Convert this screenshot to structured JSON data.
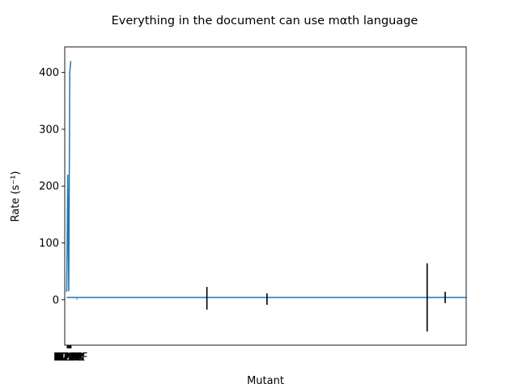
{
  "chart_data": {
    "type": "line",
    "title": "Everything in the document can use mαth language",
    "xlabel": "Mutant",
    "ylabel": "Rate (s⁻¹)",
    "ylim": [
      -80,
      445
    ],
    "grid": false,
    "legend": "none",
    "x_tick_labels": [
      "N28",
      "N28E",
      "N28P",
      "N28W",
      "N28R",
      "N28K",
      "K128F"
    ],
    "yticks": [
      0,
      100,
      200,
      300,
      400
    ],
    "series": [
      {
        "style": "line",
        "color": "#1f77b4",
        "points": [
          {
            "x": 0.0,
            "y": 14
          },
          {
            "x": 0.5,
            "y": 220
          },
          {
            "x": 1.0,
            "y": 15
          },
          {
            "x": 1.5,
            "y": 400
          },
          {
            "x": 2.0,
            "y": 420
          }
        ]
      },
      {
        "style": "line",
        "color": "#1f77b4",
        "points": [
          {
            "x": 0.0,
            "y": 4
          },
          {
            "x": 200.0,
            "y": 4
          }
        ]
      },
      {
        "style": "errorbar",
        "color": "#000000",
        "points": [
          {
            "x": 5.0,
            "y": 1,
            "err": 0.5
          },
          {
            "x": 70.0,
            "y": 2.5,
            "err": 20
          },
          {
            "x": 100.0,
            "y": 1,
            "err": 10
          },
          {
            "x": 180.0,
            "y": 4,
            "err": 60
          },
          {
            "x": 189.0,
            "y": 4,
            "err": 10
          }
        ]
      }
    ]
  }
}
